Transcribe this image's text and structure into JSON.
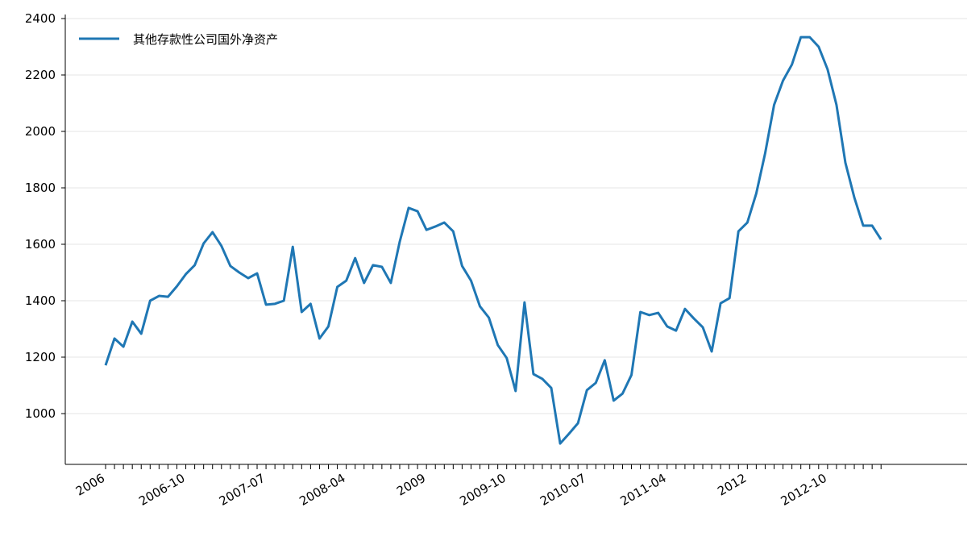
{
  "chart_data": {
    "type": "line",
    "categories": [
      "2006",
      null,
      null,
      null,
      null,
      null,
      null,
      null,
      null,
      "2006-10",
      null,
      null,
      null,
      null,
      null,
      null,
      null,
      null,
      "2007-07",
      null,
      null,
      null,
      null,
      null,
      null,
      null,
      null,
      "2008-04",
      null,
      null,
      null,
      null,
      null,
      null,
      null,
      null,
      "2009",
      null,
      null,
      null,
      null,
      null,
      null,
      null,
      null,
      "2009-10",
      null,
      null,
      null,
      null,
      null,
      null,
      null,
      null,
      "2010-07",
      null,
      null,
      null,
      null,
      null,
      null,
      null,
      null,
      "2011-04",
      null,
      null,
      null,
      null,
      null,
      null,
      null,
      null,
      "2012",
      null,
      null,
      null,
      null,
      null,
      null,
      null,
      null,
      "2012-10",
      null,
      null,
      null,
      null,
      null,
      null
    ],
    "series": [
      {
        "name": "其他存款性公司国外净资产",
        "color": "#1f77b4",
        "values": [
          1171,
          1266,
          1237,
          1326,
          1283,
          1400,
          1417,
          1414,
          1451,
          1494,
          1526,
          1603,
          1643,
          1594,
          1523,
          1500,
          1480,
          1497,
          1386,
          1389,
          1400,
          1591,
          1360,
          1389,
          1266,
          1309,
          1449,
          1471,
          1551,
          1463,
          1526,
          1520,
          1463,
          1609,
          1729,
          1717,
          1651,
          1663,
          1677,
          1646,
          1523,
          1471,
          1380,
          1340,
          1243,
          1197,
          1080,
          1394,
          1140,
          1123,
          1091,
          894,
          929,
          966,
          1083,
          1109,
          1189,
          1046,
          1071,
          1137,
          1360,
          1349,
          1357,
          1309,
          1294,
          1371,
          1337,
          1306,
          1220,
          1391,
          1409,
          1646,
          1677,
          1780,
          1923,
          2094,
          2180,
          2237,
          2334,
          2334,
          2300,
          2220,
          2094,
          1889,
          1766,
          1666,
          1666,
          1617
        ]
      }
    ],
    "ylim": [
      820,
      2400
    ],
    "yticks": [
      1000,
      1200,
      1400,
      1600,
      1800,
      2000,
      2200,
      2400
    ],
    "grid": true,
    "legend": "upper left"
  }
}
